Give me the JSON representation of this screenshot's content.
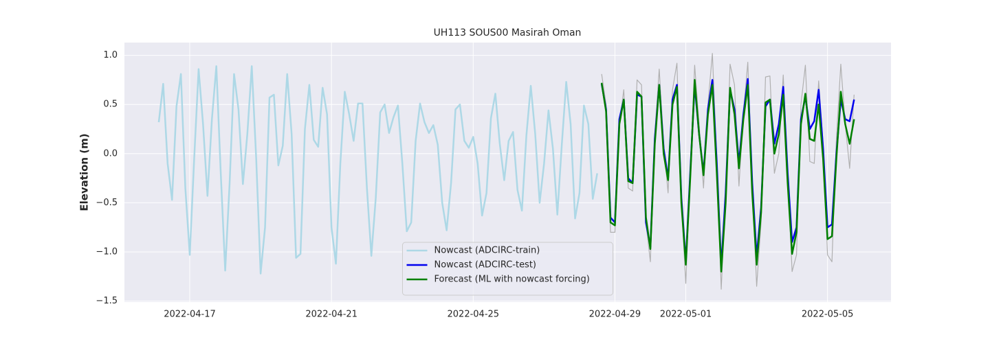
{
  "chart_data": {
    "type": "line",
    "title": "UH113 SOUS00 Masirah Oman",
    "y_label": "Elevation (m)",
    "x": [
      "2022-04-16 03:00",
      "2022-04-16 06:00",
      "2022-04-16 09:00",
      "2022-04-16 12:00",
      "2022-04-16 15:00",
      "2022-04-16 18:00",
      "2022-04-16 21:00",
      "2022-04-17 00:00",
      "2022-04-17 03:00",
      "2022-04-17 06:00",
      "2022-04-17 09:00",
      "2022-04-17 12:00",
      "2022-04-17 15:00",
      "2022-04-17 18:00",
      "2022-04-17 21:00",
      "2022-04-18 00:00",
      "2022-04-18 03:00",
      "2022-04-18 06:00",
      "2022-04-18 09:00",
      "2022-04-18 12:00",
      "2022-04-18 15:00",
      "2022-04-18 18:00",
      "2022-04-18 21:00",
      "2022-04-19 00:00",
      "2022-04-19 03:00",
      "2022-04-19 06:00",
      "2022-04-19 09:00",
      "2022-04-19 12:00",
      "2022-04-19 15:00",
      "2022-04-19 18:00",
      "2022-04-19 21:00",
      "2022-04-20 00:00",
      "2022-04-20 03:00",
      "2022-04-20 06:00",
      "2022-04-20 09:00",
      "2022-04-20 12:00",
      "2022-04-20 15:00",
      "2022-04-20 18:00",
      "2022-04-20 21:00",
      "2022-04-21 00:00",
      "2022-04-21 03:00",
      "2022-04-21 06:00",
      "2022-04-21 09:00",
      "2022-04-21 12:00",
      "2022-04-21 15:00",
      "2022-04-21 18:00",
      "2022-04-21 21:00",
      "2022-04-22 00:00",
      "2022-04-22 03:00",
      "2022-04-22 06:00",
      "2022-04-22 09:00",
      "2022-04-22 12:00",
      "2022-04-22 15:00",
      "2022-04-22 18:00",
      "2022-04-22 21:00",
      "2022-04-23 00:00",
      "2022-04-23 03:00",
      "2022-04-23 06:00",
      "2022-04-23 09:00",
      "2022-04-23 12:00",
      "2022-04-23 15:00",
      "2022-04-23 18:00",
      "2022-04-23 21:00",
      "2022-04-24 00:00",
      "2022-04-24 03:00",
      "2022-04-24 06:00",
      "2022-04-24 09:00",
      "2022-04-24 12:00",
      "2022-04-24 15:00",
      "2022-04-24 18:00",
      "2022-04-24 21:00",
      "2022-04-25 00:00",
      "2022-04-25 03:00",
      "2022-04-25 06:00",
      "2022-04-25 09:00",
      "2022-04-25 12:00",
      "2022-04-25 15:00",
      "2022-04-25 18:00",
      "2022-04-25 21:00",
      "2022-04-26 00:00",
      "2022-04-26 03:00",
      "2022-04-26 06:00",
      "2022-04-26 09:00",
      "2022-04-26 12:00",
      "2022-04-26 15:00",
      "2022-04-26 18:00",
      "2022-04-26 21:00",
      "2022-04-27 00:00",
      "2022-04-27 03:00",
      "2022-04-27 06:00",
      "2022-04-27 09:00",
      "2022-04-27 12:00",
      "2022-04-27 15:00",
      "2022-04-27 18:00",
      "2022-04-27 21:00",
      "2022-04-28 00:00",
      "2022-04-28 03:00",
      "2022-04-28 06:00",
      "2022-04-28 09:00",
      "2022-04-28 12:00",
      "2022-04-28 15:00",
      "2022-04-28 18:00",
      "2022-04-28 21:00",
      "2022-04-29 00:00",
      "2022-04-29 03:00",
      "2022-04-29 06:00",
      "2022-04-29 09:00",
      "2022-04-29 12:00",
      "2022-04-29 15:00",
      "2022-04-29 18:00",
      "2022-04-29 21:00",
      "2022-04-30 00:00",
      "2022-04-30 03:00",
      "2022-04-30 06:00",
      "2022-04-30 09:00",
      "2022-04-30 12:00",
      "2022-04-30 15:00",
      "2022-04-30 18:00",
      "2022-04-30 21:00",
      "2022-05-01 00:00",
      "2022-05-01 03:00",
      "2022-05-01 06:00",
      "2022-05-01 09:00",
      "2022-05-01 12:00",
      "2022-05-01 15:00",
      "2022-05-01 18:00",
      "2022-05-01 21:00",
      "2022-05-02 00:00",
      "2022-05-02 03:00",
      "2022-05-02 06:00",
      "2022-05-02 09:00",
      "2022-05-02 12:00",
      "2022-05-02 15:00",
      "2022-05-02 18:00",
      "2022-05-02 21:00",
      "2022-05-03 00:00",
      "2022-05-03 03:00",
      "2022-05-03 06:00",
      "2022-05-03 09:00",
      "2022-05-03 12:00",
      "2022-05-03 15:00",
      "2022-05-03 18:00",
      "2022-05-03 21:00",
      "2022-05-04 00:00",
      "2022-05-04 03:00",
      "2022-05-04 06:00",
      "2022-05-04 09:00",
      "2022-05-04 12:00",
      "2022-05-04 15:00",
      "2022-05-04 18:00",
      "2022-05-04 21:00",
      "2022-05-05 00:00",
      "2022-05-05 03:00",
      "2022-05-05 06:00",
      "2022-05-05 09:00",
      "2022-05-05 12:00",
      "2022-05-05 15:00",
      "2022-05-05 18:00"
    ],
    "series": [
      {
        "color": "#b0b0b0",
        "width": 1.2,
        "values": [
          null,
          null,
          null,
          null,
          null,
          null,
          null,
          null,
          null,
          null,
          null,
          null,
          null,
          null,
          null,
          null,
          null,
          null,
          null,
          null,
          null,
          null,
          null,
          null,
          null,
          null,
          null,
          null,
          null,
          null,
          null,
          null,
          null,
          null,
          null,
          null,
          null,
          null,
          null,
          null,
          null,
          null,
          null,
          null,
          null,
          null,
          null,
          null,
          null,
          null,
          null,
          null,
          null,
          null,
          null,
          null,
          null,
          null,
          null,
          null,
          null,
          null,
          null,
          null,
          null,
          null,
          null,
          null,
          null,
          null,
          null,
          null,
          null,
          null,
          null,
          null,
          null,
          null,
          null,
          null,
          null,
          null,
          null,
          null,
          null,
          null,
          null,
          null,
          null,
          null,
          null,
          null,
          null,
          null,
          null,
          null,
          null,
          null,
          null,
          null,
          0.81,
          0.5,
          -0.8,
          -0.8,
          0.3,
          0.65,
          -0.35,
          -0.38,
          0.75,
          0.7,
          -0.7,
          -1.1,
          0.2,
          0.86,
          0.1,
          -0.4,
          0.65,
          0.92,
          -0.5,
          -1.32,
          -0.2,
          0.9,
          0.3,
          -0.35,
          0.5,
          1.02,
          -0.05,
          -1.38,
          -0.4,
          0.91,
          0.7,
          -0.33,
          0.4,
          0.93,
          -0.3,
          -1.35,
          -0.7,
          0.78,
          0.79,
          -0.2,
          0.0,
          0.8,
          -0.2,
          -1.2,
          -1.03,
          0.5,
          0.9,
          -0.08,
          -0.1,
          0.74,
          0.1,
          -1.03,
          -1.1,
          0.15,
          0.91,
          0.3,
          -0.15,
          0.6
        ]
      },
      {
        "name": "Nowcast (ADCIRC-train)",
        "color": "#add8e6",
        "width": 2.5,
        "values": [
          0.32,
          0.71,
          -0.1,
          -0.47,
          0.48,
          0.81,
          -0.35,
          -1.03,
          -0.05,
          0.86,
          0.3,
          -0.43,
          0.35,
          0.89,
          -0.2,
          -1.19,
          -0.3,
          0.81,
          0.45,
          -0.31,
          0.2,
          0.89,
          -0.05,
          -1.22,
          -0.75,
          0.57,
          0.6,
          -0.12,
          0.08,
          0.81,
          0.2,
          -1.06,
          -1.02,
          0.25,
          0.7,
          0.14,
          0.07,
          0.67,
          0.4,
          -0.75,
          -1.12,
          -0.1,
          0.63,
          0.4,
          0.13,
          0.51,
          0.51,
          -0.35,
          -1.04,
          -0.45,
          0.42,
          0.5,
          0.21,
          0.37,
          0.49,
          -0.1,
          -0.79,
          -0.7,
          0.13,
          0.51,
          0.32,
          0.21,
          0.29,
          0.09,
          -0.5,
          -0.78,
          -0.3,
          0.45,
          0.5,
          0.13,
          0.06,
          0.17,
          -0.1,
          -0.63,
          -0.4,
          0.36,
          0.61,
          0.1,
          -0.27,
          0.13,
          0.22,
          -0.37,
          -0.58,
          0.18,
          0.69,
          0.2,
          -0.5,
          -0.1,
          0.44,
          0.05,
          -0.62,
          0.09,
          0.73,
          0.3,
          -0.66,
          -0.4,
          0.49,
          0.3,
          -0.46,
          -0.2,
          null,
          null,
          null,
          null,
          null,
          null,
          null,
          null,
          null,
          null,
          null,
          null,
          null,
          null,
          null,
          null,
          null,
          null,
          null,
          null,
          null,
          null,
          null,
          null,
          null,
          null,
          null,
          null,
          null,
          null,
          null,
          null,
          null,
          null,
          null,
          null,
          null,
          null,
          null,
          null,
          null,
          null,
          null,
          null,
          null,
          null,
          null,
          null,
          null,
          null,
          null,
          null,
          null,
          null,
          null,
          null,
          null,
          null
        ]
      },
      {
        "name": "Nowcast (ADCIRC-test)",
        "color": "#0000ee",
        "width": 2.5,
        "values": [
          null,
          null,
          null,
          null,
          null,
          null,
          null,
          null,
          null,
          null,
          null,
          null,
          null,
          null,
          null,
          null,
          null,
          null,
          null,
          null,
          null,
          null,
          null,
          null,
          null,
          null,
          null,
          null,
          null,
          null,
          null,
          null,
          null,
          null,
          null,
          null,
          null,
          null,
          null,
          null,
          null,
          null,
          null,
          null,
          null,
          null,
          null,
          null,
          null,
          null,
          null,
          null,
          null,
          null,
          null,
          null,
          null,
          null,
          null,
          null,
          null,
          null,
          null,
          null,
          null,
          null,
          null,
          null,
          null,
          null,
          null,
          null,
          null,
          null,
          null,
          null,
          null,
          null,
          null,
          null,
          null,
          null,
          null,
          null,
          null,
          null,
          null,
          null,
          null,
          null,
          null,
          null,
          null,
          null,
          null,
          null,
          null,
          null,
          null,
          null,
          0.71,
          0.45,
          -0.65,
          -0.7,
          0.35,
          0.55,
          -0.25,
          -0.3,
          0.6,
          0.58,
          -0.7,
          -0.95,
          0.15,
          0.7,
          0.05,
          -0.25,
          0.55,
          0.7,
          -0.45,
          -1.1,
          -0.2,
          0.7,
          0.2,
          -0.2,
          0.45,
          0.75,
          -0.1,
          -1.15,
          -0.4,
          0.65,
          0.45,
          -0.1,
          0.4,
          0.76,
          -0.3,
          -1.05,
          -0.55,
          0.48,
          0.55,
          0.1,
          0.3,
          0.68,
          -0.2,
          -0.9,
          -0.75,
          0.35,
          0.58,
          0.25,
          0.33,
          0.65,
          0.05,
          -0.75,
          -0.72,
          0.0,
          0.55,
          0.35,
          0.33,
          0.55
        ]
      },
      {
        "name": "Forecast (ML with nowcast forcing)",
        "color": "#008000",
        "width": 2.5,
        "values": [
          null,
          null,
          null,
          null,
          null,
          null,
          null,
          null,
          null,
          null,
          null,
          null,
          null,
          null,
          null,
          null,
          null,
          null,
          null,
          null,
          null,
          null,
          null,
          null,
          null,
          null,
          null,
          null,
          null,
          null,
          null,
          null,
          null,
          null,
          null,
          null,
          null,
          null,
          null,
          null,
          null,
          null,
          null,
          null,
          null,
          null,
          null,
          null,
          null,
          null,
          null,
          null,
          null,
          null,
          null,
          null,
          null,
          null,
          null,
          null,
          null,
          null,
          null,
          null,
          null,
          null,
          null,
          null,
          null,
          null,
          null,
          null,
          null,
          null,
          null,
          null,
          null,
          null,
          null,
          null,
          null,
          null,
          null,
          null,
          null,
          null,
          null,
          null,
          null,
          null,
          null,
          null,
          null,
          null,
          null,
          null,
          null,
          null,
          null,
          null,
          0.72,
          0.43,
          -0.7,
          -0.73,
          0.3,
          0.55,
          -0.28,
          -0.3,
          0.63,
          0.58,
          -0.65,
          -0.97,
          0.1,
          0.7,
          0.0,
          -0.27,
          0.5,
          0.68,
          -0.5,
          -1.13,
          -0.25,
          0.75,
          0.2,
          -0.22,
          0.4,
          0.7,
          -0.2,
          -1.2,
          -0.5,
          0.67,
          0.4,
          -0.15,
          0.35,
          0.7,
          -0.4,
          -1.13,
          -0.6,
          0.52,
          0.55,
          0.0,
          0.2,
          0.6,
          -0.3,
          -1.02,
          -0.8,
          0.3,
          0.61,
          0.15,
          0.13,
          0.5,
          -0.05,
          -0.87,
          -0.84,
          -0.05,
          0.63,
          0.3,
          0.1,
          0.35
        ]
      }
    ],
    "xlim": [
      "2022-04-15 03:45",
      "2022-05-06 19:00"
    ],
    "xticks": [
      "2022-04-17",
      "2022-04-21",
      "2022-04-25",
      "2022-04-29",
      "2022-05-01",
      "2022-05-05"
    ],
    "ylim": [
      -1.51,
      1.13
    ],
    "yticks": [
      {
        "value": -1.5,
        "label": "−1.5"
      },
      {
        "value": -1.0,
        "label": "−1.0"
      },
      {
        "value": -0.5,
        "label": "−0.5"
      },
      {
        "value": 0.0,
        "label": "0.0"
      },
      0.5,
      {
        "value": 1.0,
        "label": "1.0"
      }
    ],
    "grid": true,
    "legend": "lower center"
  }
}
